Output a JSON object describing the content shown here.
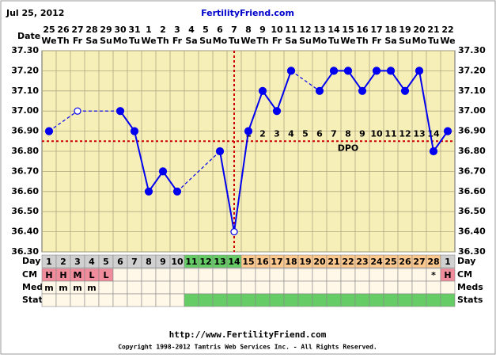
{
  "chart_data": {
    "type": "line",
    "subtitle": "Jul 25, 2012",
    "title": "FertilityFriend.com",
    "x_axis_label": "Date",
    "categories": [
      "25",
      "26",
      "27",
      "28",
      "29",
      "30",
      "31",
      "1",
      "2",
      "3",
      "4",
      "5",
      "6",
      "7",
      "8",
      "9",
      "10",
      "11",
      "12",
      "13",
      "14",
      "15",
      "16",
      "17",
      "18",
      "19",
      "20",
      "21",
      "22"
    ],
    "weekdays": [
      "We",
      "Th",
      "Fr",
      "Sa",
      "Su",
      "Mo",
      "Tu",
      "We",
      "Th",
      "Fr",
      "Sa",
      "Su",
      "Mo",
      "Tu",
      "We",
      "Th",
      "Fr",
      "Sa",
      "Su",
      "Mo",
      "Tu",
      "We",
      "Th",
      "Fr",
      "Sa",
      "Su",
      "Mo",
      "Tu",
      "We"
    ],
    "series": [
      {
        "name": "Temperature",
        "color": "#0000ee",
        "values": [
          36.9,
          null,
          37.0,
          null,
          null,
          37.0,
          36.9,
          36.6,
          36.7,
          36.6,
          null,
          null,
          36.8,
          36.4,
          36.9,
          37.1,
          37.0,
          37.2,
          null,
          37.1,
          37.2,
          37.2,
          37.1,
          37.2,
          37.2,
          37.1,
          37.2,
          36.8,
          36.9
        ]
      }
    ],
    "cover_line": 36.85,
    "dpo_label": "DPO",
    "dpo": [
      null,
      null,
      null,
      null,
      null,
      null,
      null,
      null,
      null,
      null,
      null,
      null,
      null,
      null,
      1,
      2,
      3,
      4,
      5,
      6,
      7,
      8,
      9,
      10,
      11,
      12,
      13,
      14,
      null
    ],
    "ylim": [
      36.3,
      37.3
    ],
    "yticks": [
      {
        "value": 36.3,
        "label": "36.30"
      },
      {
        "value": 36.4,
        "label": "36.40"
      },
      {
        "value": 36.5,
        "label": "36.50"
      },
      {
        "value": 36.6,
        "label": "36.60"
      },
      {
        "value": 36.7,
        "label": "36.70"
      },
      {
        "value": 36.8,
        "label": "36.80"
      },
      {
        "value": 36.9,
        "label": "36.90"
      },
      {
        "value": 37.0,
        "label": "37.00"
      },
      {
        "value": 37.1,
        "label": "37.10"
      },
      {
        "value": 37.2,
        "label": "37.20"
      },
      {
        "value": 37.3,
        "label": "37.30"
      }
    ],
    "grid": true,
    "rows": {
      "day": {
        "label": "Day",
        "values": [
          1,
          2,
          3,
          4,
          5,
          6,
          7,
          8,
          9,
          10,
          11,
          12,
          13,
          14,
          15,
          16,
          17,
          18,
          19,
          20,
          21,
          22,
          23,
          24,
          25,
          26,
          27,
          28,
          1
        ]
      },
      "cm": {
        "label": "CM",
        "values": [
          "H",
          "H",
          "M",
          "L",
          "L",
          null,
          null,
          null,
          null,
          null,
          null,
          null,
          null,
          null,
          null,
          null,
          null,
          null,
          null,
          null,
          null,
          null,
          null,
          null,
          null,
          null,
          null,
          "*",
          "H"
        ]
      },
      "meds": {
        "label": "Meds",
        "values": [
          "m",
          "m",
          "m",
          "m",
          null,
          null,
          null,
          null,
          null,
          null,
          null,
          null,
          null,
          null,
          null,
          null,
          null,
          null,
          null,
          null,
          null,
          null,
          null,
          null,
          null,
          null,
          null,
          null,
          null
        ]
      },
      "stats": {
        "label": "Stats"
      }
    },
    "footer_url": "http://www.FertilityFriend.com",
    "copyright": "Copyright 1998-2012 Tamtris Web Services Inc. - All Rights Reserved."
  }
}
